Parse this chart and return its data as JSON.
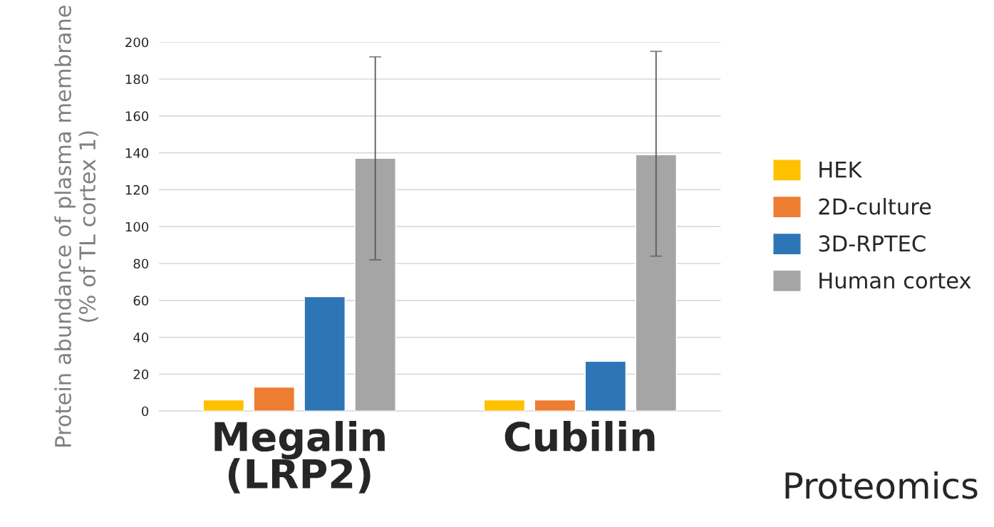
{
  "chart_data": {
    "type": "bar",
    "ylabel": "Protein abundance of plasma membrane\n(% of TL cortex 1)",
    "categories": [
      "Megalin\n(LRP2)",
      "Cubilin"
    ],
    "series": [
      {
        "name": "HEK",
        "color": "#ffc000",
        "values": [
          6,
          6
        ]
      },
      {
        "name": "2D-culture",
        "color": "#ed7d31",
        "values": [
          13,
          6
        ]
      },
      {
        "name": "3D-RPTEC",
        "color": "#2e75b6",
        "values": [
          62,
          27
        ]
      },
      {
        "name": "Human cortex",
        "color": "#a5a5a5",
        "values": [
          137,
          139
        ],
        "errors": [
          [
            82,
            192
          ],
          [
            84,
            195
          ]
        ]
      }
    ],
    "ylim": [
      0,
      200
    ],
    "yticks": [
      0,
      20,
      40,
      60,
      80,
      100,
      120,
      140,
      160,
      180,
      200
    ],
    "grid": "y",
    "legend": "right",
    "annotations": [
      "Proteomics"
    ]
  }
}
